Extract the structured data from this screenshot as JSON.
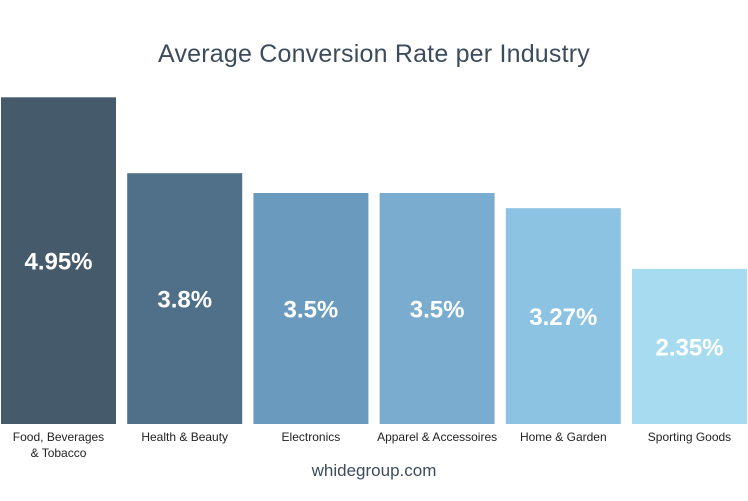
{
  "chart_data": {
    "type": "bar",
    "title": "Average Conversion Rate per Industry",
    "categories": [
      "Food, Beverages & Tobacco",
      "Health & Beauty",
      "Electronics",
      "Apparel & Accessoires",
      "Home & Garden",
      "Sporting Goods"
    ],
    "category_lines": [
      [
        "Food, Beverages",
        "& Tobacco"
      ],
      [
        "Health & Beauty"
      ],
      [
        "Electronics"
      ],
      [
        "Apparel & Accessoires"
      ],
      [
        "Home & Garden"
      ],
      [
        "Sporting Goods"
      ]
    ],
    "values": [
      4.95,
      3.8,
      3.5,
      3.5,
      3.27,
      2.35
    ],
    "data_labels": [
      "4.95%",
      "3.8%",
      "3.5%",
      "3.5%",
      "3.27%",
      "2.35%"
    ],
    "bar_colors": [
      "#455a6b",
      "#4f7088",
      "#6a9bbf",
      "#7aaccf",
      "#8cc3e3",
      "#a7dcf0"
    ],
    "ylim": [
      0,
      5
    ],
    "grid": false,
    "legend": "none"
  },
  "source": "whidegroup.com"
}
